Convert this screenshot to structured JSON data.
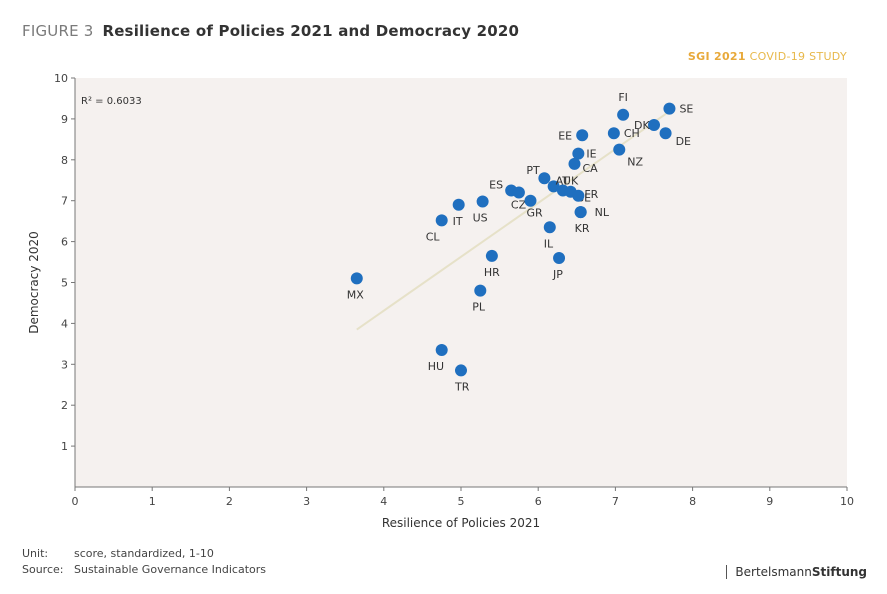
{
  "figure": {
    "label": "FIGURE 3",
    "title": "Resilience of Policies 2021 and Democracy 2020",
    "study_tag_bold": "SGI 2021",
    "study_tag_rest": "COVID-19 STUDY"
  },
  "footer": {
    "unit_key": "Unit:",
    "unit_value": "score, standardized, 1-10",
    "source_key": "Source:",
    "source_value": "Sustainable Governance Indicators",
    "brand_regular": "Bertelsmann",
    "brand_bold": "Stiftung"
  },
  "colors": {
    "plot_background": "#f5f1ef",
    "point": "#1f6fbf",
    "trendline": "#e6e1c8",
    "title_accent": "#e8a93a"
  },
  "chart_data": {
    "type": "scatter",
    "title": "Resilience of Policies 2021 and Democracy 2020",
    "xlabel": "Resilience of Policies 2021",
    "ylabel": "Democracy 2020",
    "xlim": [
      0,
      10
    ],
    "ylim": [
      0,
      10
    ],
    "xticks": [
      0,
      1,
      2,
      3,
      4,
      5,
      6,
      7,
      8,
      9,
      10
    ],
    "yticks": [
      1,
      2,
      3,
      4,
      5,
      6,
      7,
      8,
      9,
      10
    ],
    "grid": false,
    "annotation": "R² = 0.6033",
    "trendline": {
      "x": [
        3.65,
        7.75
      ],
      "y": [
        3.85,
        9.25
      ]
    },
    "points": [
      {
        "label": "FI",
        "x": 7.1,
        "y": 9.1
      },
      {
        "label": "SE",
        "x": 7.7,
        "y": 9.25
      },
      {
        "label": "DK",
        "x": 7.5,
        "y": 8.85
      },
      {
        "label": "DE",
        "x": 7.65,
        "y": 8.65
      },
      {
        "label": "CH",
        "x": 6.98,
        "y": 8.65
      },
      {
        "label": "EE",
        "x": 6.57,
        "y": 8.6
      },
      {
        "label": "NZ",
        "x": 7.05,
        "y": 8.25
      },
      {
        "label": "IE",
        "x": 6.52,
        "y": 8.15
      },
      {
        "label": "CA",
        "x": 6.47,
        "y": 7.9
      },
      {
        "label": "PT",
        "x": 6.08,
        "y": 7.55
      },
      {
        "label": "AT",
        "x": 6.2,
        "y": 7.35
      },
      {
        "label": "UK",
        "x": 6.32,
        "y": 7.25
      },
      {
        "label": "BE",
        "x": 6.42,
        "y": 7.22
      },
      {
        "label": "FR",
        "x": 6.52,
        "y": 7.12
      },
      {
        "label": "ES",
        "x": 5.65,
        "y": 7.25
      },
      {
        "label": "CZ",
        "x": 5.75,
        "y": 7.2
      },
      {
        "label": "GR",
        "x": 5.9,
        "y": 7.0
      },
      {
        "label": "NL",
        "x": 6.55,
        "y": 6.72
      },
      {
        "label": "US",
        "x": 5.28,
        "y": 6.98
      },
      {
        "label": "IT",
        "x": 4.97,
        "y": 6.9
      },
      {
        "label": "CL",
        "x": 4.75,
        "y": 6.52
      },
      {
        "label": "KR",
        "x": 6.55,
        "y": 6.72
      },
      {
        "label": "IL",
        "x": 6.15,
        "y": 6.35
      },
      {
        "label": "HR",
        "x": 5.4,
        "y": 5.65
      },
      {
        "label": "JP",
        "x": 6.27,
        "y": 5.6
      },
      {
        "label": "MX",
        "x": 3.65,
        "y": 5.1
      },
      {
        "label": "PL",
        "x": 5.25,
        "y": 4.8
      },
      {
        "label": "HU",
        "x": 4.75,
        "y": 3.35
      },
      {
        "label": "TR",
        "x": 5.0,
        "y": 2.85
      }
    ]
  }
}
